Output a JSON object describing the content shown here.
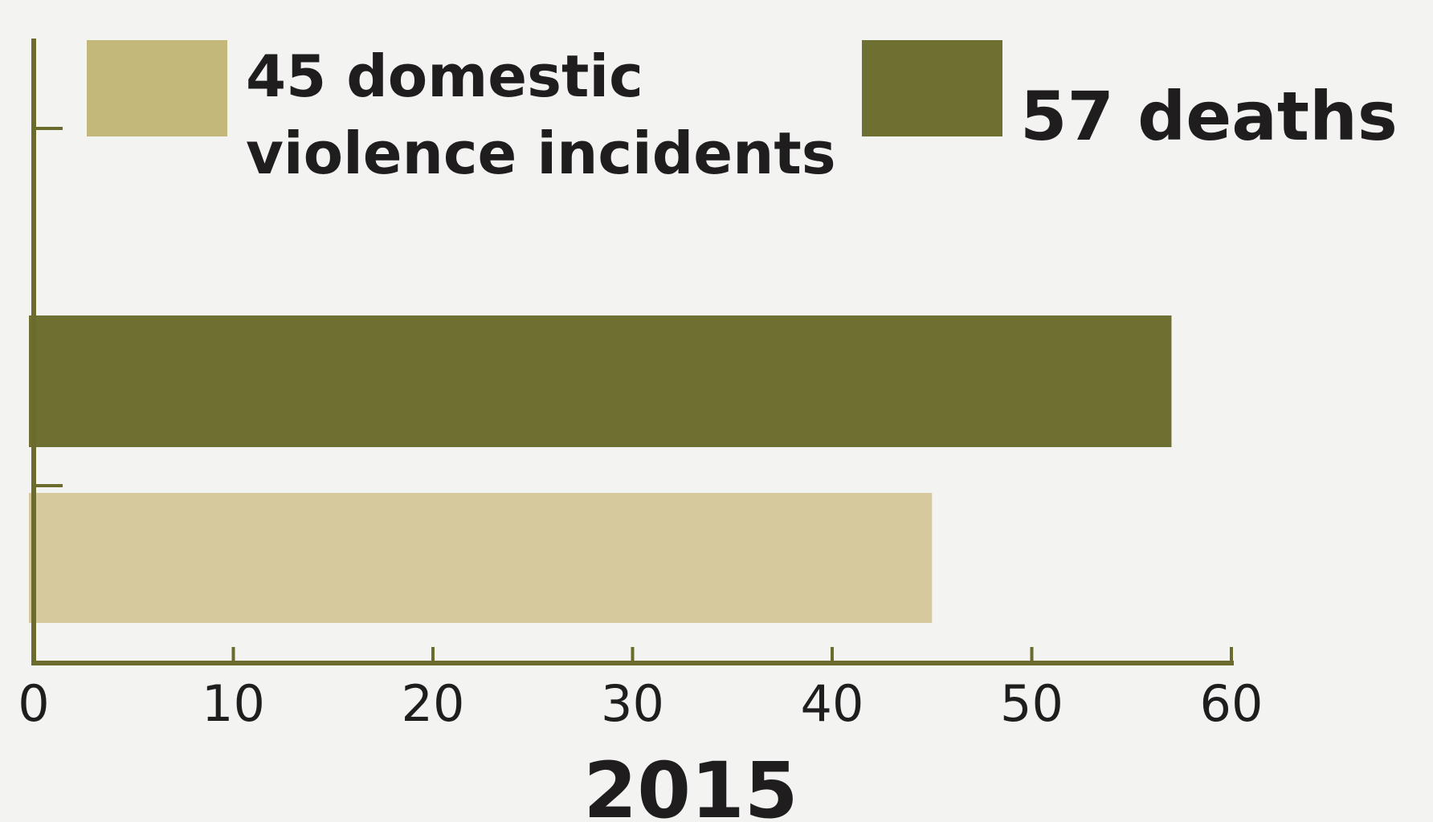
{
  "chart_data": {
    "type": "bar",
    "orientation": "horizontal",
    "series": [
      {
        "name": "57 deaths",
        "values": [
          57
        ],
        "color": "#6e7032"
      },
      {
        "name": "45 domestic violence incidents",
        "values": [
          45
        ],
        "color": "#d6c99e",
        "legend_color": "#c3b77a"
      }
    ],
    "legend": {
      "placement": "top",
      "items": [
        {
          "lines": [
            "45 domestic",
            "violence incidents"
          ],
          "color": "#c3b77a"
        },
        {
          "lines": [
            "57 deaths"
          ],
          "color": "#6e7032"
        }
      ]
    },
    "xlabel": "2015",
    "xlim": [
      0,
      60
    ],
    "xticks": [
      "0",
      "10",
      "20",
      "30",
      "40",
      "50",
      "60"
    ],
    "grid": false,
    "axis_color": "#6b6b2e",
    "background": "#f3f3f2"
  }
}
